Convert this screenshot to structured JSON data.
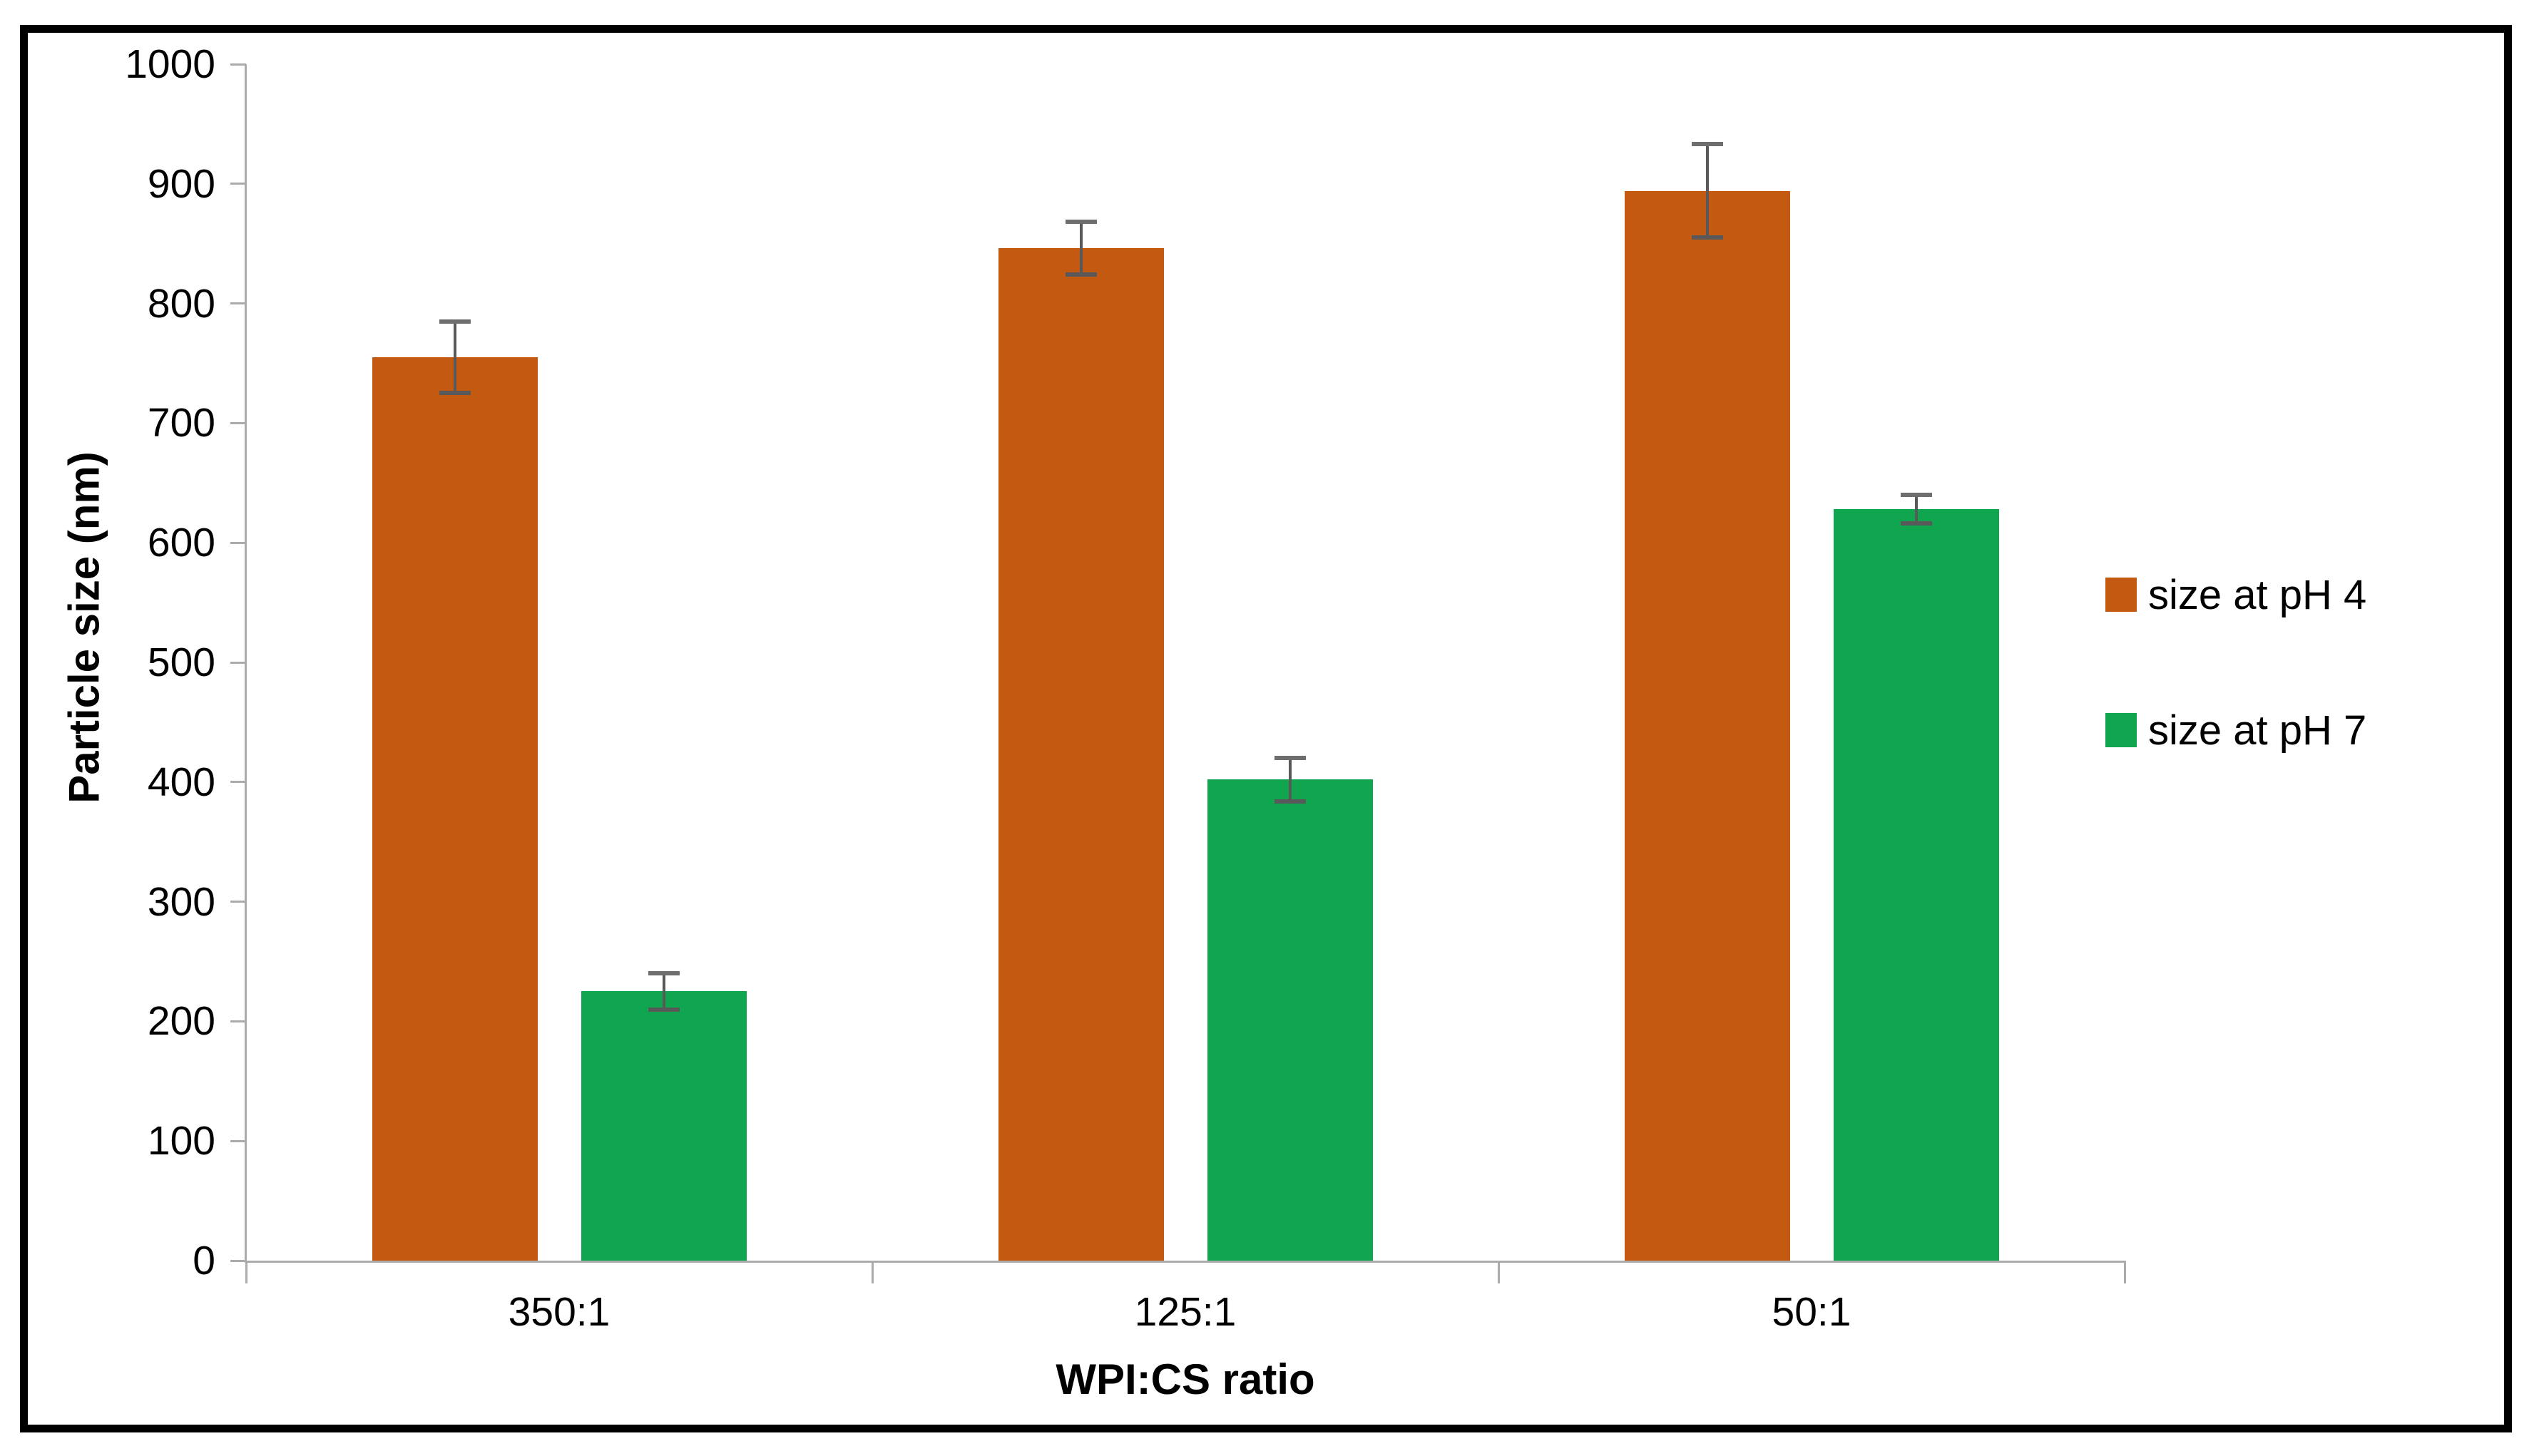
{
  "chart_data": {
    "type": "bar",
    "title": "",
    "categories": [
      "350:1",
      "125:1",
      "50:1"
    ],
    "series": [
      {
        "name": "size at pH 4",
        "color": "#C45A12",
        "values": [
          755,
          846,
          894
        ],
        "errors": [
          30,
          22,
          39
        ]
      },
      {
        "name": "size at pH 7",
        "color": "#10A64F",
        "values": [
          225,
          402,
          628
        ],
        "errors": [
          15,
          18,
          12
        ]
      }
    ],
    "xlabel": "WPI:CS ratio",
    "ylabel": "Particle size (nm)",
    "ylim": [
      0,
      1000
    ],
    "ytick_step": 100,
    "grid": false,
    "legend_position": "right",
    "error_bars": true
  },
  "style": {
    "axis_color": "#ABABAB",
    "error_bar_color": "#595959",
    "error_cap_color": "#6E6E6E",
    "border_color": "#000000",
    "background": "#FFFFFF",
    "text_color": "#000000"
  }
}
